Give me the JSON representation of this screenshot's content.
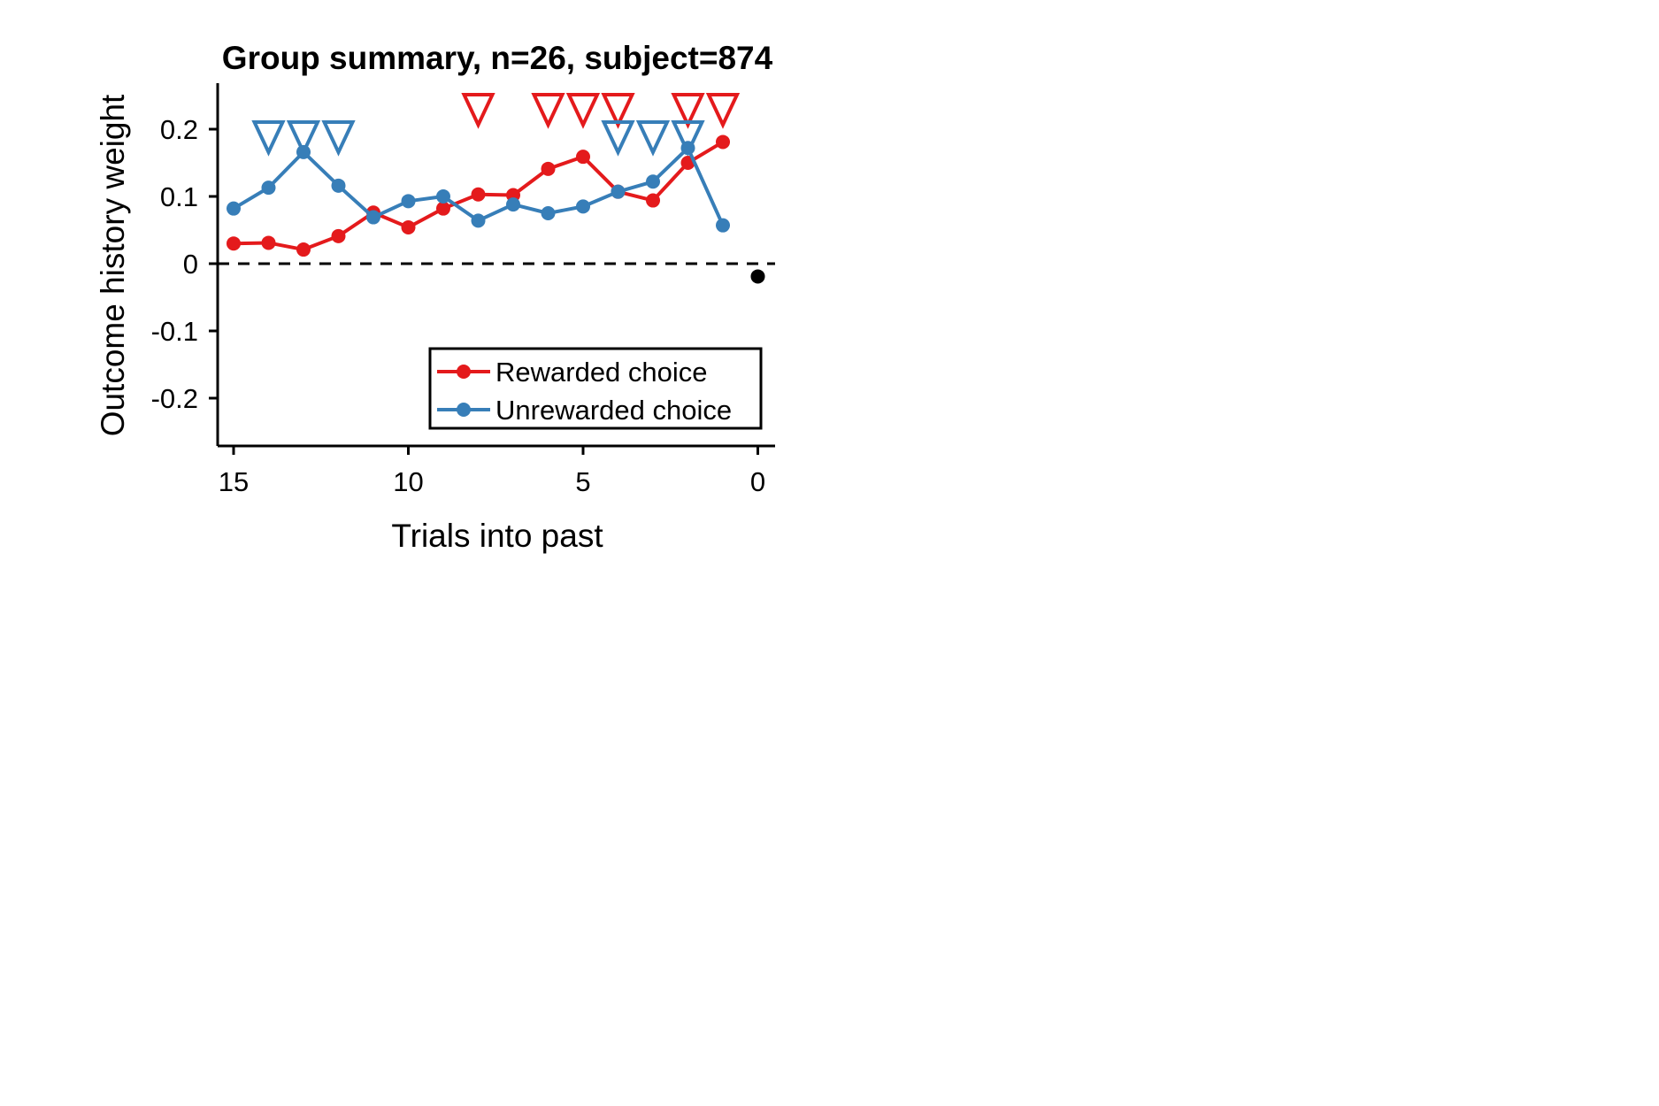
{
  "chart_data": {
    "type": "line",
    "title": "Group summary, n=26, subject=874",
    "xlabel": "Trials into past",
    "ylabel": "Outcome history weight",
    "xlim": [
      15.5,
      -0.5
    ],
    "ylim": [
      -0.27,
      0.27
    ],
    "x_ticks": [
      15,
      10,
      5,
      0
    ],
    "x_tick_labels": [
      "15",
      "10",
      "5",
      "0"
    ],
    "y_ticks": [
      -0.2,
      -0.1,
      0,
      0.1,
      0.2
    ],
    "y_tick_labels": [
      "-0.2",
      "-0.1",
      "0",
      "0.1",
      "0.2"
    ],
    "reference_line": {
      "y": 0,
      "style": "dashed",
      "color": "#000000"
    },
    "series": [
      {
        "name": "Rewarded choice",
        "color": "#e41a1c",
        "x": [
          15,
          14,
          13,
          12,
          11,
          10,
          9,
          8,
          7,
          6,
          5,
          4,
          3,
          2,
          1
        ],
        "values": [
          0.03,
          0.031,
          0.021,
          0.041,
          0.076,
          0.054,
          0.082,
          0.103,
          0.102,
          0.141,
          0.159,
          0.107,
          0.094,
          0.15,
          0.181
        ],
        "significant_trials": [
          8,
          6,
          5,
          4,
          2,
          1
        ]
      },
      {
        "name": "Unrewarded choice",
        "color": "#377eb8",
        "x": [
          15,
          14,
          13,
          12,
          11,
          10,
          9,
          8,
          7,
          6,
          5,
          4,
          3,
          2,
          1
        ],
        "values": [
          0.082,
          0.113,
          0.166,
          0.116,
          0.069,
          0.093,
          0.1,
          0.064,
          0.088,
          0.075,
          0.085,
          0.107,
          0.122,
          0.172,
          0.057
        ],
        "significant_trials": [
          14,
          13,
          12,
          4,
          3,
          2
        ]
      }
    ],
    "bias_point": {
      "x": 0,
      "y": -0.019,
      "color": "#000000"
    },
    "legend": {
      "placement": "lower-right",
      "frame": true
    },
    "grid": false
  }
}
